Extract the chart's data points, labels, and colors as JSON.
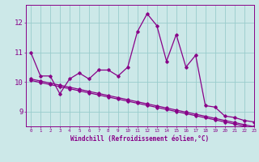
{
  "xlabel": "Windchill (Refroidissement éolien,°C)",
  "bg_color": "#cce8e8",
  "line_color": "#880088",
  "grid_color": "#99cccc",
  "hours": [
    0,
    1,
    2,
    3,
    4,
    5,
    6,
    7,
    8,
    9,
    10,
    11,
    12,
    13,
    14,
    15,
    16,
    17,
    18,
    19,
    20,
    21,
    22,
    23
  ],
  "line1": [
    11.0,
    10.2,
    10.2,
    9.6,
    10.1,
    10.3,
    10.1,
    10.4,
    10.4,
    10.2,
    10.5,
    11.7,
    12.3,
    11.9,
    10.7,
    11.6,
    10.5,
    10.9,
    9.2,
    9.15,
    8.85,
    8.8,
    8.7,
    8.65
  ],
  "line2": [
    10.05,
    9.98,
    9.91,
    9.84,
    9.77,
    9.7,
    9.63,
    9.56,
    9.49,
    9.42,
    9.35,
    9.28,
    9.21,
    9.14,
    9.07,
    9.0,
    8.93,
    8.86,
    8.79,
    8.72,
    8.65,
    8.58,
    8.51,
    8.44
  ],
  "line3": [
    10.1,
    10.03,
    9.96,
    9.89,
    9.82,
    9.75,
    9.68,
    9.61,
    9.54,
    9.47,
    9.4,
    9.33,
    9.26,
    9.19,
    9.12,
    9.05,
    8.98,
    8.91,
    8.84,
    8.77,
    8.7,
    8.63,
    8.56,
    8.49
  ],
  "ylim": [
    8.5,
    12.6
  ],
  "yticks": [
    9,
    10,
    11,
    12
  ],
  "xlim": [
    -0.5,
    23
  ]
}
